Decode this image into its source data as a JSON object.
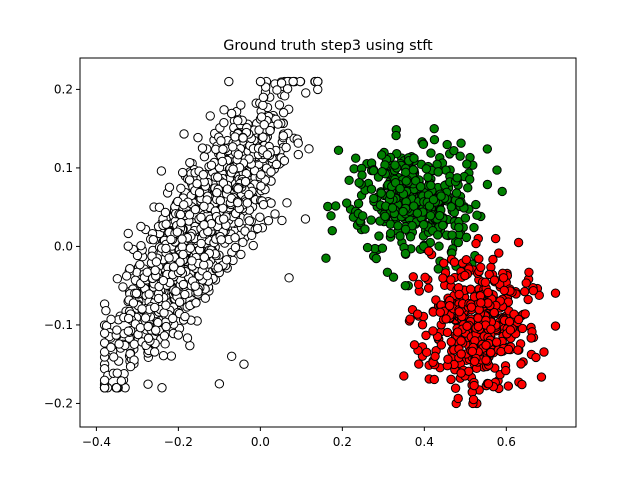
{
  "chart_data": {
    "type": "scatter",
    "title": "Ground truth step3 using stft",
    "xlabel": "",
    "ylabel": "",
    "xlim": [
      -0.44,
      0.77
    ],
    "ylim": [
      -0.23,
      0.24
    ],
    "xticks": [
      -0.4,
      -0.2,
      0.0,
      0.2,
      0.4,
      0.6
    ],
    "xtick_labels": [
      "−0.4",
      "−0.2",
      "0.0",
      "0.2",
      "0.4",
      "0.6"
    ],
    "yticks": [
      -0.2,
      -0.1,
      0.0,
      0.1,
      0.2
    ],
    "ytick_labels": [
      "−0.2",
      "−0.1",
      "0.0",
      "0.1",
      "0.2"
    ],
    "grid": false,
    "series": [
      {
        "color": "#ffffff",
        "count": 1400,
        "center": [
          -0.15,
          0.02
        ],
        "x_sd": 0.1,
        "minor_sd": 0.045,
        "slope": 0.7,
        "x_range": [
          -0.38,
          0.14
        ],
        "y_range": [
          -0.18,
          0.21
        ],
        "outliers": [
          [
            0.08,
            0.21
          ],
          [
            0.14,
            0.2
          ],
          [
            0.11,
            0.035
          ],
          [
            0.07,
            -0.04
          ],
          [
            -0.04,
            -0.15
          ],
          [
            -0.07,
            -0.14
          ],
          [
            -0.24,
            -0.18
          ],
          [
            -0.1,
            -0.175
          ]
        ]
      },
      {
        "color": "#008000",
        "count": 450,
        "center": [
          0.38,
          0.06
        ],
        "x_sd": 0.07,
        "y_sd": 0.035,
        "x_range": [
          0.16,
          0.6
        ],
        "y_range": [
          -0.05,
          0.15
        ],
        "outliers": [
          [
            0.59,
            0.07
          ],
          [
            0.16,
            -0.015
          ]
        ]
      },
      {
        "color": "#ff0000",
        "count": 450,
        "center": [
          0.53,
          -0.1
        ],
        "x_sd": 0.065,
        "y_sd": 0.04,
        "x_range": [
          0.33,
          0.72
        ],
        "y_range": [
          -0.2,
          0.01
        ],
        "outliers": [
          [
            0.63,
            0.005
          ],
          [
            0.52,
            -0.195
          ],
          [
            0.35,
            -0.165
          ]
        ]
      }
    ]
  }
}
